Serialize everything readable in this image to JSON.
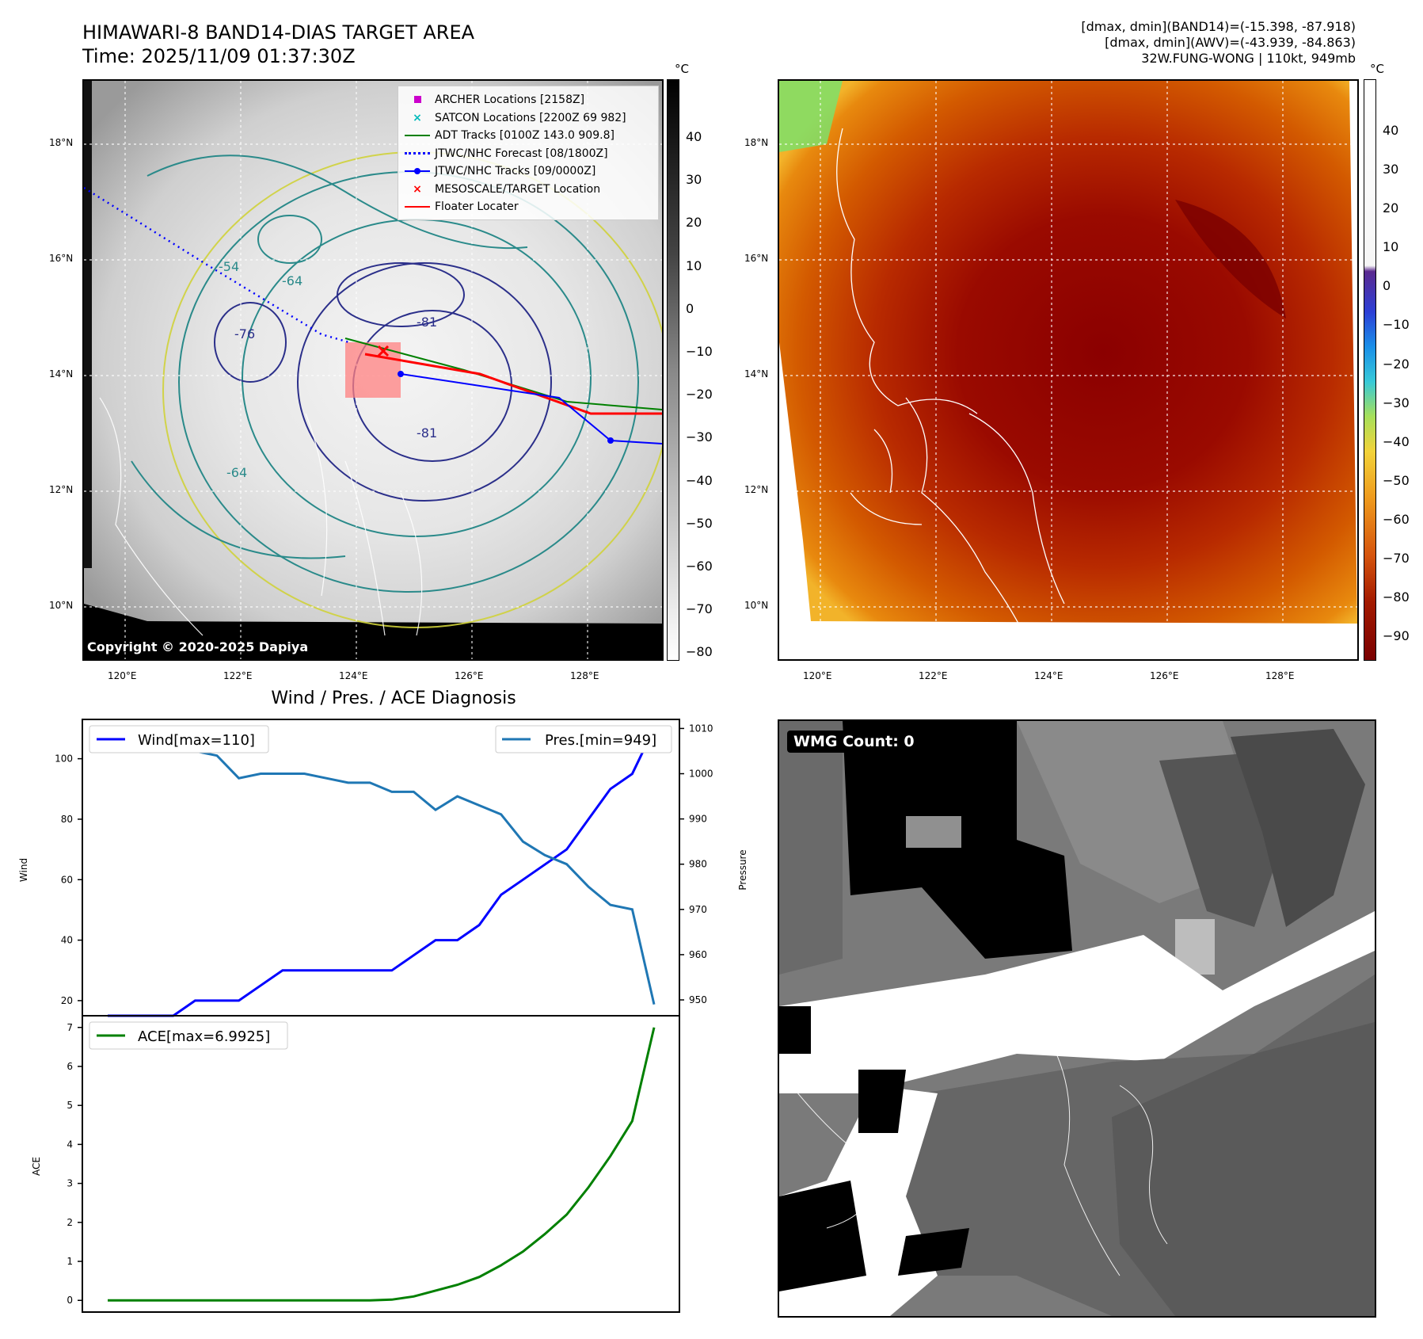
{
  "header": {
    "title_line1": "HIMAWARI-8 BAND14-DIAS TARGET AREA",
    "title_line2": "Time: 2025/11/09 01:37:30Z",
    "right_line1": "[dmax, dmin](BAND14)=(-15.398, -87.918)",
    "right_line2": "[dmax, dmin](AWV)=(-43.939, -84.863)",
    "right_line3": "32W.FUNG-WONG | 110kt, 949mb"
  },
  "map": {
    "lat_labels": [
      "18°N",
      "16°N",
      "14°N",
      "12°N",
      "10°N"
    ],
    "lon_labels": [
      "120°E",
      "122°E",
      "124°E",
      "126°E",
      "128°E"
    ],
    "copyright": "Copyright © 2020-2025 Dapiya",
    "contour_labels": [
      "-54",
      "-64",
      "-76",
      "-81"
    ],
    "legend": [
      {
        "label": "ARCHER Locations [2158Z]",
        "color": "#cc00cc",
        "marker": "square"
      },
      {
        "label": "SATCON Locations [2200Z 69 982]",
        "color": "#00bbbb",
        "marker": "x"
      },
      {
        "label": "ADT Tracks [0100Z 143.0 909.8]",
        "color": "#008000",
        "marker": "line"
      },
      {
        "label": "JTWC/NHC Forecast [08/1800Z]",
        "color": "#0000ff",
        "marker": "dotted"
      },
      {
        "label": "JTWC/NHC Tracks [09/0000Z]",
        "color": "#0000ff",
        "marker": "line-dot"
      },
      {
        "label": "MESOSCALE/TARGET Location",
        "color": "#ff0000",
        "marker": "x"
      },
      {
        "label": "Floater Locater",
        "color": "#ff0000",
        "marker": "line"
      }
    ]
  },
  "colorbar_left": {
    "unit": "°C",
    "ticks": [
      "40",
      "30",
      "20",
      "10",
      "0",
      "−10",
      "−20",
      "−30",
      "−40",
      "−50",
      "−60",
      "−70",
      "−80"
    ]
  },
  "colorbar_right": {
    "unit": "°C",
    "ticks": [
      "40",
      "30",
      "20",
      "10",
      "0",
      "−10",
      "−20",
      "−30",
      "−40",
      "−50",
      "−60",
      "−70",
      "−80",
      "−90"
    ]
  },
  "wmg": {
    "label": "WMG Count: 0"
  },
  "colors": {
    "wind": "#0000ff",
    "pressure": "#1f77b4",
    "ace": "#008000"
  },
  "chart_data": [
    {
      "type": "line",
      "title": "Wind / Pres. / ACE Diagnosis",
      "ylabel": "Wind",
      "ylabel_right": "Pressure",
      "ylim": [
        15,
        113
      ],
      "ylim_right": [
        946.5,
        1012
      ],
      "yticks": [
        20,
        40,
        60,
        80,
        100
      ],
      "yticks_right": [
        950,
        960,
        970,
        980,
        990,
        1000,
        1010
      ],
      "x": [
        0,
        1,
        2,
        3,
        4,
        5,
        6,
        7,
        8,
        9,
        10,
        11,
        12,
        13,
        14,
        15,
        16,
        17,
        18,
        19,
        20,
        21,
        22,
        23,
        24,
        25
      ],
      "series": [
        {
          "name": "Wind[max=110]",
          "axis": "left",
          "values": [
            15,
            15,
            15,
            15,
            20,
            20,
            20,
            25,
            30,
            30,
            30,
            30,
            30,
            30,
            35,
            40,
            40,
            45,
            55,
            60,
            65,
            70,
            80,
            90,
            95,
            110
          ]
        },
        {
          "name": "Pres.[min=949]",
          "axis": "right",
          "values": [
            1009,
            1006,
            1006,
            1006,
            1005,
            1004,
            999,
            1000,
            1000,
            1000,
            999,
            998,
            998,
            996,
            996,
            992,
            995,
            993,
            991,
            985,
            982,
            980,
            975,
            971,
            970,
            949
          ]
        }
      ]
    },
    {
      "type": "line",
      "ylabel": "ACE",
      "ylim": [
        -0.3,
        7.3
      ],
      "yticks": [
        0,
        1,
        2,
        3,
        4,
        5,
        6,
        7
      ],
      "x": [
        0,
        1,
        2,
        3,
        4,
        5,
        6,
        7,
        8,
        9,
        10,
        11,
        12,
        13,
        14,
        15,
        16,
        17,
        18,
        19,
        20,
        21,
        22,
        23,
        24,
        25
      ],
      "series": [
        {
          "name": "ACE[max=6.9925]",
          "values": [
            0,
            0,
            0,
            0,
            0,
            0,
            0,
            0,
            0,
            0,
            0,
            0,
            0,
            0.02,
            0.1,
            0.25,
            0.4,
            0.6,
            0.9,
            1.25,
            1.7,
            2.2,
            2.9,
            3.7,
            4.6,
            7.0
          ]
        }
      ]
    }
  ]
}
